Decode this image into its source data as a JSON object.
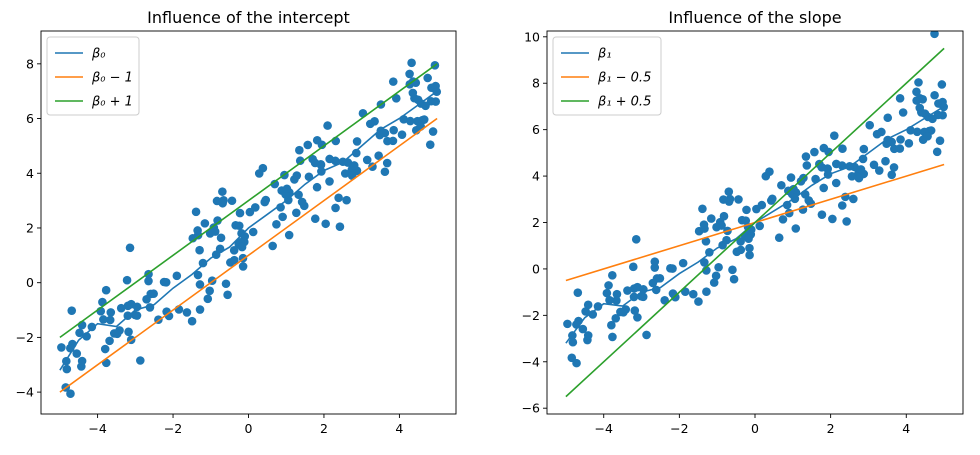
{
  "chart_data": [
    {
      "type": "scatter",
      "title": "Influence of the intercept",
      "xlabel": "",
      "ylabel": "",
      "xlim": [
        -5.5,
        5.5
      ],
      "ylim": [
        -4.8,
        9.2
      ],
      "xticks": [
        -4,
        -2,
        0,
        2,
        4
      ],
      "yticks": [
        -4,
        -2,
        0,
        2,
        4,
        6,
        8
      ],
      "xtick_labels": [
        "−4",
        "−2",
        "0",
        "2",
        "4"
      ],
      "ytick_labels": [
        "−4",
        "−2",
        "0",
        "2",
        "4",
        "6",
        "8"
      ],
      "legend_position": "top-left",
      "grid": false,
      "scatter_color": "#1f77b4",
      "points_seed": 7,
      "points_count": 200,
      "points_model": {
        "intercept": 2.0,
        "slope": 1.0,
        "noise": 0.9
      },
      "series": [
        {
          "name": "β₀",
          "color": "#1f77b4",
          "x": [
            -5,
            -4.5,
            -4,
            -3.5,
            -3,
            -2.5,
            -2,
            -1.5,
            -1,
            -0.5,
            0,
            0.5,
            1,
            1.5,
            2,
            2.5,
            3,
            3.5,
            4,
            4.5,
            5
          ],
          "y": [
            -3.2,
            -2.1,
            -1.5,
            -1.6,
            -1.0,
            -0.8,
            -0.2,
            0.3,
            0.9,
            1.3,
            2.0,
            2.5,
            3.0,
            3.6,
            4.1,
            4.4,
            5.0,
            5.6,
            6.0,
            6.5,
            7.0
          ]
        },
        {
          "name": "β₀ − 1",
          "color": "#ff7f0e",
          "x": [
            -5,
            5
          ],
          "y": [
            -4,
            6
          ]
        },
        {
          "name": "β₀ + 1",
          "color": "#2ca02c",
          "x": [
            -5,
            5
          ],
          "y": [
            -2,
            8
          ]
        }
      ]
    },
    {
      "type": "scatter",
      "title": "Influence of the slope",
      "xlabel": "",
      "ylabel": "",
      "xlim": [
        -5.5,
        5.5
      ],
      "ylim": [
        -6.25,
        10.25
      ],
      "xticks": [
        -4,
        -2,
        0,
        2,
        4
      ],
      "yticks": [
        -6,
        -4,
        -2,
        0,
        2,
        4,
        6,
        8,
        10
      ],
      "xtick_labels": [
        "−4",
        "−2",
        "0",
        "2",
        "4"
      ],
      "ytick_labels": [
        "−6",
        "−4",
        "−2",
        "0",
        "2",
        "4",
        "6",
        "8",
        "10"
      ],
      "legend_position": "top-left",
      "grid": false,
      "scatter_color": "#1f77b4",
      "points_seed": 7,
      "points_count": 200,
      "points_model": {
        "intercept": 2.0,
        "slope": 1.0,
        "noise": 0.9
      },
      "series": [
        {
          "name": "β₁",
          "color": "#1f77b4",
          "x": [
            -5,
            -4.5,
            -4,
            -3.5,
            -3,
            -2.5,
            -2,
            -1.5,
            -1,
            -0.5,
            0,
            0.5,
            1,
            1.5,
            2,
            2.5,
            3,
            3.5,
            4,
            4.5,
            5
          ],
          "y": [
            -3.2,
            -2.1,
            -1.5,
            -1.6,
            -1.0,
            -0.8,
            -0.2,
            0.3,
            0.9,
            1.3,
            2.0,
            2.5,
            3.0,
            3.6,
            4.1,
            4.4,
            5.0,
            5.6,
            6.0,
            6.5,
            7.0
          ]
        },
        {
          "name": "β₁ − 0.5",
          "color": "#ff7f0e",
          "x": [
            -5,
            5
          ],
          "y": [
            -0.5,
            4.5
          ]
        },
        {
          "name": "β₁ + 0.5",
          "color": "#2ca02c",
          "x": [
            -5,
            5
          ],
          "y": [
            -5.5,
            9.5
          ]
        }
      ]
    }
  ]
}
